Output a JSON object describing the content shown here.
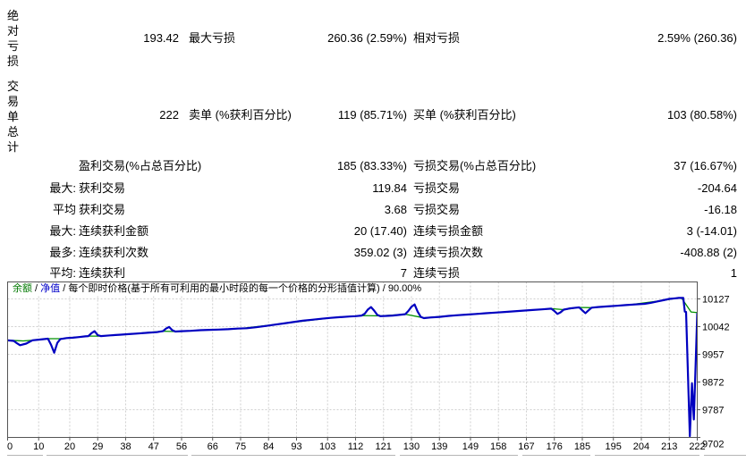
{
  "stats": {
    "group_labels": [
      "绝对亏损",
      "交易单总计"
    ],
    "rows": [
      {
        "b": "193.42",
        "c": "最大亏损",
        "d": "260.36 (2.59%)",
        "e": "相对亏损",
        "f": "2.59% (260.36)"
      },
      {
        "b": "222",
        "c": "卖单 (%获利百分比)",
        "d": "119 (85.71%)",
        "e": "买单 (%获利百分比)",
        "f": "103 (80.58%)"
      },
      {
        "b": "",
        "c": "盈利交易(%占总百分比)",
        "d": "185 (83.33%)",
        "e": "亏损交易(%占总百分比)",
        "f": "37 (16.67%)"
      },
      {
        "b": "最大:",
        "c": "获利交易",
        "d": "119.84",
        "e": "亏损交易",
        "f": "-204.64"
      },
      {
        "b": "平均",
        "c": "获利交易",
        "d": "3.68",
        "e": "亏损交易",
        "f": "-16.18"
      },
      {
        "b": "最大:",
        "c": "连续获利金额",
        "d": "20 (17.40)",
        "e": "连续亏损金额",
        "f": "3 (-14.01)"
      },
      {
        "b": "最多:",
        "c": "连续获利次数",
        "d": "359.02 (3)",
        "e": "连续亏损次数",
        "f": "-408.88 (2)"
      },
      {
        "b": "平均:",
        "c": "连续获利",
        "d": "7",
        "e": "连续亏损",
        "f": "1"
      }
    ]
  },
  "chart_data": {
    "type": "line",
    "caption_parts": [
      {
        "text": "余额",
        "color": "#007800"
      },
      {
        "text": " / ",
        "color": "#000000"
      },
      {
        "text": "净值",
        "color": "#0000C8"
      },
      {
        "text": " / ",
        "color": "#000000"
      },
      {
        "text": "每个即时价格(基于所有可利用的最小时段的每一个价格的分形插值计算) / 90.00%",
        "color": "#000000"
      }
    ],
    "x_ticks": [
      0,
      10,
      20,
      29,
      38,
      47,
      56,
      66,
      75,
      84,
      93,
      103,
      112,
      121,
      130,
      139,
      149,
      158,
      167,
      176,
      185,
      195,
      204,
      213,
      222
    ],
    "y_ticks": [
      10127,
      10042,
      9957,
      9872,
      9787,
      9702
    ],
    "xlim": [
      0,
      222
    ],
    "ylim": [
      9687,
      10180
    ],
    "grid": true,
    "legend_position": "top-left",
    "colors": {
      "grid": "#cfcfcf",
      "axis": "#555555",
      "divider": "#b5b5b5",
      "background": "#ffffff"
    },
    "series": [
      {
        "name": "余额",
        "color": "#009000",
        "width": 1.3,
        "points": [
          [
            0,
            10000
          ],
          [
            3,
            9999
          ],
          [
            5,
            9998
          ],
          [
            8,
            10000
          ],
          [
            13,
            10005
          ],
          [
            17,
            10005
          ],
          [
            20,
            10008
          ],
          [
            26,
            10013
          ],
          [
            30,
            10013
          ],
          [
            40,
            10020
          ],
          [
            50,
            10028
          ],
          [
            54,
            10027
          ],
          [
            65,
            10032
          ],
          [
            75,
            10036
          ],
          [
            90,
            10053
          ],
          [
            105,
            10070
          ],
          [
            114,
            10076
          ],
          [
            120,
            10075
          ],
          [
            128,
            10080
          ],
          [
            134,
            10069
          ],
          [
            150,
            10081
          ],
          [
            165,
            10090
          ],
          [
            175,
            10097
          ],
          [
            179,
            10094
          ],
          [
            184,
            10101
          ],
          [
            188,
            10100
          ],
          [
            200,
            10109
          ],
          [
            210,
            10121
          ],
          [
            216,
            10130
          ],
          [
            217,
            10129
          ],
          [
            220,
            10087
          ],
          [
            222,
            10085
          ]
        ]
      },
      {
        "name": "净值",
        "color": "#0000C0",
        "width": 2.2,
        "points": [
          [
            0,
            10000
          ],
          [
            2,
            9998
          ],
          [
            3,
            9991
          ],
          [
            4,
            9985
          ],
          [
            6,
            9990
          ],
          [
            8,
            10000
          ],
          [
            10,
            10002
          ],
          [
            12,
            10004
          ],
          [
            13,
            10005
          ],
          [
            14,
            9986
          ],
          [
            15,
            9962
          ],
          [
            16,
            9992
          ],
          [
            17,
            10004
          ],
          [
            19,
            10007
          ],
          [
            21,
            10008
          ],
          [
            23,
            10010
          ],
          [
            25,
            10012
          ],
          [
            26,
            10013
          ],
          [
            27,
            10022
          ],
          [
            28,
            10028
          ],
          [
            29,
            10016
          ],
          [
            30,
            10013
          ],
          [
            33,
            10015
          ],
          [
            36,
            10017
          ],
          [
            39,
            10019
          ],
          [
            42,
            10021
          ],
          [
            45,
            10023
          ],
          [
            48,
            10025
          ],
          [
            50,
            10028
          ],
          [
            51,
            10036
          ],
          [
            52,
            10041
          ],
          [
            53,
            10031
          ],
          [
            54,
            10027
          ],
          [
            56,
            10028
          ],
          [
            59,
            10029
          ],
          [
            62,
            10031
          ],
          [
            65,
            10032
          ],
          [
            68,
            10033
          ],
          [
            71,
            10034
          ],
          [
            74,
            10036
          ],
          [
            77,
            10037
          ],
          [
            80,
            10040
          ],
          [
            83,
            10044
          ],
          [
            86,
            10048
          ],
          [
            89,
            10052
          ],
          [
            92,
            10056
          ],
          [
            95,
            10060
          ],
          [
            98,
            10063
          ],
          [
            101,
            10066
          ],
          [
            104,
            10069
          ],
          [
            107,
            10071
          ],
          [
            110,
            10073
          ],
          [
            112,
            10074
          ],
          [
            114,
            10076
          ],
          [
            115,
            10082
          ],
          [
            116,
            10095
          ],
          [
            117,
            10102
          ],
          [
            118,
            10091
          ],
          [
            119,
            10078
          ],
          [
            120,
            10074
          ],
          [
            122,
            10075
          ],
          [
            124,
            10076
          ],
          [
            126,
            10078
          ],
          [
            128,
            10080
          ],
          [
            129,
            10090
          ],
          [
            130,
            10103
          ],
          [
            131,
            10110
          ],
          [
            132,
            10088
          ],
          [
            133,
            10072
          ],
          [
            134,
            10068
          ],
          [
            136,
            10070
          ],
          [
            139,
            10072
          ],
          [
            142,
            10075
          ],
          [
            145,
            10077
          ],
          [
            148,
            10079
          ],
          [
            151,
            10081
          ],
          [
            154,
            10083
          ],
          [
            157,
            10085
          ],
          [
            160,
            10087
          ],
          [
            163,
            10089
          ],
          [
            166,
            10091
          ],
          [
            169,
            10093
          ],
          [
            172,
            10095
          ],
          [
            175,
            10097
          ],
          [
            176,
            10090
          ],
          [
            177,
            10081
          ],
          [
            178,
            10086
          ],
          [
            179,
            10094
          ],
          [
            181,
            10098
          ],
          [
            183,
            10100
          ],
          [
            184,
            10101
          ],
          [
            185,
            10092
          ],
          [
            186,
            10083
          ],
          [
            187,
            10092
          ],
          [
            188,
            10100
          ],
          [
            190,
            10102
          ],
          [
            193,
            10104
          ],
          [
            196,
            10106
          ],
          [
            199,
            10108
          ],
          [
            202,
            10110
          ],
          [
            205,
            10112
          ],
          [
            207,
            10115
          ],
          [
            209,
            10119
          ],
          [
            211,
            10123
          ],
          [
            213,
            10127
          ],
          [
            215,
            10129
          ],
          [
            216,
            10130
          ],
          [
            217.5,
            10130
          ],
          [
            218,
            10088
          ],
          [
            218.4,
            10087
          ],
          [
            219.6,
            9706
          ],
          [
            220.3,
            9868
          ],
          [
            220.9,
            9757
          ],
          [
            221.6,
            9960
          ],
          [
            222,
            10082
          ]
        ]
      }
    ]
  }
}
